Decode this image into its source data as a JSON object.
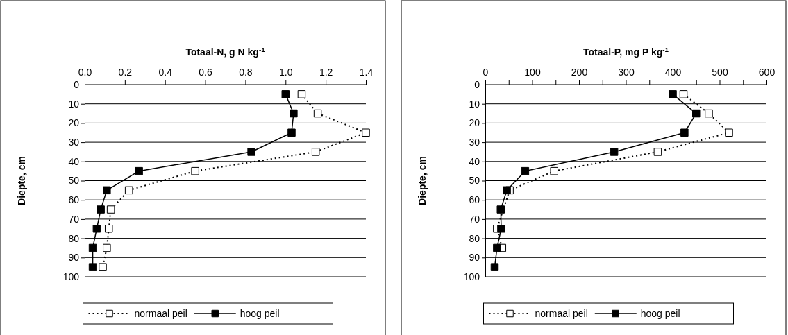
{
  "chart_data": [
    {
      "type": "line",
      "xlabel": "Totaal-N, g N kg$^{-1}$",
      "ylabel": "Diepte, cm",
      "xlim": [
        0,
        1.4
      ],
      "xticks": [
        {
          "value": 0,
          "label": "0.0"
        },
        {
          "value": 0.2,
          "label": "0.2"
        },
        {
          "value": 0.4,
          "label": "0.4"
        },
        {
          "value": 0.6,
          "label": "0.6"
        },
        {
          "value": 0.8,
          "label": "0.8"
        },
        {
          "value": 1,
          "label": "1.0"
        },
        {
          "value": 1.2,
          "label": "1.2"
        },
        {
          "value": 1.4,
          "label": "1.4"
        }
      ],
      "ylim": [
        100,
        0
      ],
      "yticks": [
        0,
        10,
        20,
        30,
        40,
        50,
        60,
        70,
        80,
        90,
        100
      ],
      "grid": "y",
      "legend": "bottom",
      "marker": "square",
      "series": [
        {
          "name": "normaal peil",
          "color": "#000000",
          "line_style": "dotted",
          "x": [
            1.08,
            1.16,
            1.4,
            1.15,
            0.55,
            0.22,
            0.13,
            0.12,
            0.11,
            0.09
          ],
          "values": [
            5,
            15,
            25,
            35,
            45,
            55,
            65,
            75,
            85,
            95
          ]
        },
        {
          "name": "hoog peil",
          "color": "#000000",
          "line_style": "solid",
          "x": [
            1.0,
            1.04,
            1.03,
            0.83,
            0.27,
            0.11,
            0.08,
            0.06,
            0.04,
            0.04
          ],
          "values": [
            5,
            15,
            25,
            35,
            45,
            55,
            65,
            75,
            85,
            95
          ]
        }
      ]
    },
    {
      "type": "line",
      "xlabel": "Totaal-P, mg P kg$^{-1}$",
      "ylabel": "Diepte, cm",
      "xlim": [
        0,
        600
      ],
      "xticks": [
        0,
        {
          "value": 50,
          "label": null
        },
        100,
        {
          "value": 150,
          "label": null
        },
        200,
        {
          "value": 250,
          "label": null
        },
        300,
        {
          "value": 350,
          "label": null
        },
        400,
        {
          "value": 450,
          "label": null
        },
        500,
        {
          "value": 550,
          "label": null
        },
        600
      ],
      "ylim": [
        100,
        0
      ],
      "yticks": [
        0,
        10,
        20,
        30,
        40,
        50,
        60,
        70,
        80,
        90,
        100
      ],
      "grid": "y",
      "legend": "bottom",
      "marker": "square",
      "series": [
        {
          "name": "normaal peil",
          "color": "#000000",
          "line_style": "dotted",
          "x": [
            423,
            477,
            520,
            368,
            147,
            52,
            null,
            25,
            36,
            null
          ],
          "values": [
            5,
            15,
            25,
            35,
            45,
            55,
            null,
            75,
            85,
            null
          ]
        },
        {
          "name": "hoog peil",
          "color": "#000000",
          "line_style": "solid",
          "x": [
            400,
            450,
            425,
            275,
            85,
            46,
            33,
            34,
            25,
            20
          ],
          "values": [
            5,
            15,
            25,
            35,
            45,
            55,
            65,
            75,
            85,
            95
          ]
        }
      ]
    }
  ]
}
